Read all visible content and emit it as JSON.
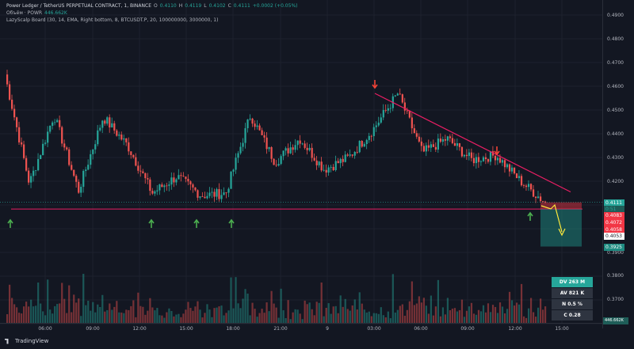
{
  "legend": {
    "symbol_line": "Power Ledger / TetherUS PERPETUAL CONTRACT, 1, BINANCE",
    "ohlc": [
      {
        "label": "O",
        "value": "0.4110"
      },
      {
        "label": "H",
        "value": "0.4119"
      },
      {
        "label": "L",
        "value": "0.4102"
      },
      {
        "label": "C",
        "value": "0.4111"
      }
    ],
    "change": "+0.0002 (+0.05%)",
    "volume_label": "Объём · POWR",
    "volume_value": "446.662K",
    "indicator": "LazyScalp Board (30, 14, EMA, Right bottom, 8, BTCUSDT.P, 20, 100000000, 3000000, 1)"
  },
  "price_axis": {
    "ticks": [
      "0.4900",
      "0.4800",
      "0.4700",
      "0.4600",
      "0.4500",
      "0.4400",
      "0.4300",
      "0.4200",
      "0.3900",
      "0.3800",
      "0.3700"
    ],
    "tags": [
      {
        "text": "0.4111",
        "color": "#26a69a"
      },
      {
        "text": "0:51",
        "color": "#26a69a"
      },
      {
        "text": "0.4083",
        "color": "#f23645"
      },
      {
        "text": "0.4072",
        "color": "#f23645"
      },
      {
        "text": "0.4058",
        "color": "#f23645"
      },
      {
        "text": "0.4053",
        "color": "#ffffff"
      },
      {
        "text": "0.3925",
        "color": "#1e8c82"
      }
    ],
    "volume_badge": "446.662K"
  },
  "time_axis": {
    "ticks": [
      "06:00",
      "09:00",
      "12:00",
      "15:00",
      "18:00",
      "21:00",
      "9",
      "03:00",
      "06:00",
      "09:00",
      "12:00",
      "15:00"
    ]
  },
  "stats": [
    {
      "text": "DV 263 M",
      "style": "vol"
    },
    {
      "text": "AV 821 K",
      "style": "dark"
    },
    {
      "text": "N 0.5 %",
      "style": "dark"
    },
    {
      "text": "C 0.28",
      "style": "dark"
    }
  ],
  "colors": {
    "up": "#26a69a",
    "down": "#ef5350",
    "trendline": "#e91e63",
    "arrow_up": "#4caf50",
    "arrow_down": "#f44336",
    "projection": "#ffeb3b"
  },
  "watermark": "TradingView",
  "chart_data": {
    "type": "candlestick",
    "title": "",
    "y_unit": "USDT",
    "ylim": [
      0.365,
      0.495
    ],
    "x_ticks": [
      "06:00",
      "09:00",
      "12:00",
      "15:00",
      "18:00",
      "21:00",
      "9",
      "03:00",
      "06:00",
      "09:00",
      "12:00",
      "15:00"
    ],
    "anchor_closes": [
      0.465,
      0.419,
      0.448,
      0.416,
      0.447,
      0.435,
      0.415,
      0.422,
      0.414,
      0.415,
      0.448,
      0.428,
      0.438,
      0.425,
      0.43,
      0.442,
      0.457,
      0.432,
      0.438,
      0.429,
      0.431,
      0.42,
      0.411
    ],
    "support_level": 0.4083,
    "target_level": 0.3925,
    "last_price": 0.4111
  }
}
